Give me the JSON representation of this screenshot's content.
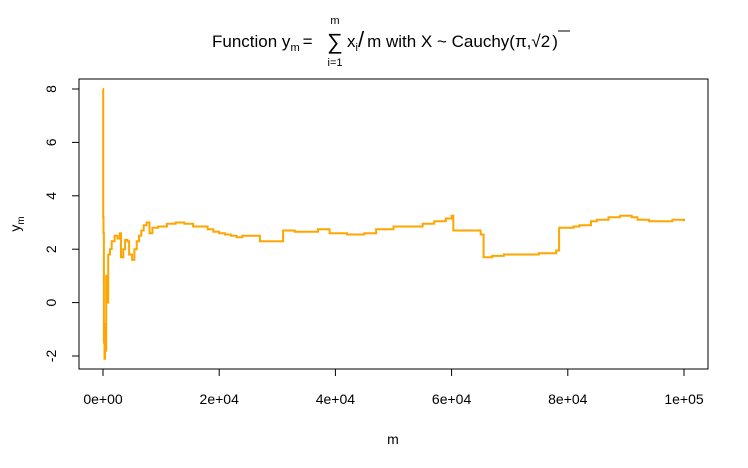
{
  "chart_data": {
    "type": "line",
    "title": {
      "prefix": "Function y",
      "sub_m": "m",
      "equals": "=",
      "sum_upper": "m",
      "sum_symbol": "∑",
      "sum_lower": "i=1",
      "x_var": "x",
      "sub_i": "i",
      "slash": "/",
      "suffix_1": "m with X ~ Cauchy(",
      "pi": "π",
      "comma": ",",
      "sqrt_symbol": "√",
      "sqrt_arg": "2",
      "close_paren": ")"
    },
    "xlabel": "m",
    "ylabel": "y",
    "ylabel_sub": "m",
    "xlim": [
      0,
      100000
    ],
    "ylim": [
      -2,
      8
    ],
    "x_ticks": [
      0,
      20000,
      40000,
      60000,
      80000,
      100000
    ],
    "x_tick_labels": [
      "0e+00",
      "2e+04",
      "4e+04",
      "6e+04",
      "8e+04",
      "1e+05"
    ],
    "y_ticks": [
      -2,
      0,
      2,
      4,
      6,
      8
    ],
    "y_tick_labels": [
      "-2",
      "0",
      "2",
      "4",
      "6",
      "8"
    ],
    "grid": false,
    "line_color": "#FFA500",
    "series": [
      {
        "values": [
          [
            1,
            8.0
          ],
          [
            40,
            3.2
          ],
          [
            80,
            2.6
          ],
          [
            150,
            -1.5
          ],
          [
            250,
            -2.1
          ],
          [
            350,
            -0.8
          ],
          [
            450,
            -1.8
          ],
          [
            550,
            1.0
          ],
          [
            700,
            0.0
          ],
          [
            900,
            1.8
          ],
          [
            1200,
            2.0
          ],
          [
            1500,
            2.3
          ],
          [
            2000,
            2.5
          ],
          [
            2500,
            2.4
          ],
          [
            2900,
            2.6
          ],
          [
            3100,
            1.7
          ],
          [
            3500,
            2.0
          ],
          [
            3800,
            2.35
          ],
          [
            4200,
            2.3
          ],
          [
            4500,
            1.8
          ],
          [
            5000,
            1.6
          ],
          [
            5400,
            2.0
          ],
          [
            5800,
            2.3
          ],
          [
            6200,
            2.5
          ],
          [
            6600,
            2.7
          ],
          [
            7000,
            2.9
          ],
          [
            7500,
            3.0
          ],
          [
            8000,
            2.6
          ],
          [
            8500,
            2.8
          ],
          [
            9500,
            2.85
          ],
          [
            11000,
            2.95
          ],
          [
            12500,
            3.0
          ],
          [
            14000,
            2.95
          ],
          [
            15500,
            2.85
          ],
          [
            17000,
            2.85
          ],
          [
            18000,
            2.75
          ],
          [
            19000,
            2.65
          ],
          [
            20000,
            2.6
          ],
          [
            21000,
            2.55
          ],
          [
            22000,
            2.5
          ],
          [
            23000,
            2.45
          ],
          [
            24000,
            2.5
          ],
          [
            26000,
            2.5
          ],
          [
            27000,
            2.3
          ],
          [
            30000,
            2.3
          ],
          [
            31000,
            2.7
          ],
          [
            33000,
            2.65
          ],
          [
            35000,
            2.65
          ],
          [
            37000,
            2.75
          ],
          [
            39000,
            2.6
          ],
          [
            42000,
            2.55
          ],
          [
            45000,
            2.6
          ],
          [
            47000,
            2.75
          ],
          [
            50000,
            2.85
          ],
          [
            53000,
            2.85
          ],
          [
            55000,
            2.95
          ],
          [
            57000,
            3.05
          ],
          [
            59000,
            3.15
          ],
          [
            60000,
            3.25
          ],
          [
            60300,
            2.7
          ],
          [
            63000,
            2.7
          ],
          [
            65000,
            2.55
          ],
          [
            65500,
            1.7
          ],
          [
            67000,
            1.75
          ],
          [
            69000,
            1.8
          ],
          [
            72000,
            1.8
          ],
          [
            75000,
            1.85
          ],
          [
            78000,
            1.95
          ],
          [
            78500,
            2.8
          ],
          [
            80000,
            2.8
          ],
          [
            81000,
            2.85
          ],
          [
            82000,
            2.9
          ],
          [
            84000,
            3.05
          ],
          [
            85000,
            3.1
          ],
          [
            87000,
            3.2
          ],
          [
            89000,
            3.25
          ],
          [
            91000,
            3.2
          ],
          [
            92000,
            3.1
          ],
          [
            94000,
            3.05
          ],
          [
            96000,
            3.05
          ],
          [
            98000,
            3.1
          ],
          [
            100000,
            3.05
          ]
        ]
      }
    ]
  }
}
